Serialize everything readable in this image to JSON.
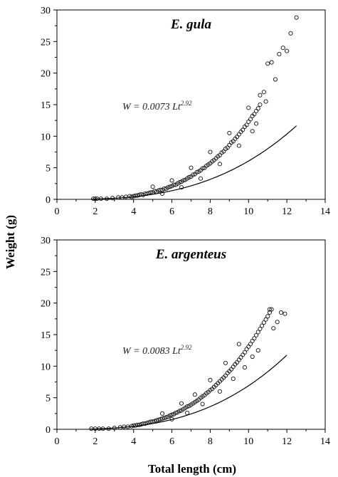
{
  "figure": {
    "ylabel": "Weight (g)",
    "xlabel": "Total length (cm)"
  },
  "chart_data": [
    {
      "type": "scatter",
      "title": "E. gula",
      "equation": {
        "prefix": "W = 0.0073 Lt",
        "exponent": "2.92"
      },
      "model": {
        "a": 0.0073,
        "b": 2.92,
        "x_from": 1.8,
        "x_to": 12.5
      },
      "xlim": [
        0,
        14
      ],
      "ylim": [
        0,
        30
      ],
      "xticks": [
        0,
        2,
        4,
        6,
        8,
        10,
        12,
        14
      ],
      "yticks": [
        0,
        5,
        10,
        15,
        20,
        25,
        30
      ],
      "points": [
        [
          1.9,
          0.1
        ],
        [
          2.0,
          0.1
        ],
        [
          2.1,
          0.1
        ],
        [
          2.3,
          0.1
        ],
        [
          2.6,
          0.1
        ],
        [
          2.9,
          0.2
        ],
        [
          3.2,
          0.3
        ],
        [
          3.4,
          0.3
        ],
        [
          3.6,
          0.4
        ],
        [
          3.8,
          0.5
        ],
        [
          3.9,
          0.4
        ],
        [
          4.0,
          0.5
        ],
        [
          4.1,
          0.6
        ],
        [
          4.2,
          0.6
        ],
        [
          4.3,
          0.7
        ],
        [
          4.4,
          0.8
        ],
        [
          4.5,
          0.7
        ],
        [
          4.6,
          0.9
        ],
        [
          4.7,
          0.9
        ],
        [
          4.8,
          1.0
        ],
        [
          4.9,
          1.1
        ],
        [
          5.0,
          1.1
        ],
        [
          5.1,
          1.3
        ],
        [
          5.2,
          1.2
        ],
        [
          5.3,
          1.4
        ],
        [
          5.4,
          1.5
        ],
        [
          5.5,
          1.5
        ],
        [
          5.6,
          1.7
        ],
        [
          5.7,
          1.7
        ],
        [
          5.8,
          1.9
        ],
        [
          5.9,
          2.0
        ],
        [
          6.0,
          2.1
        ],
        [
          6.1,
          2.3
        ],
        [
          6.2,
          2.3
        ],
        [
          6.3,
          2.5
        ],
        [
          6.4,
          2.7
        ],
        [
          6.5,
          2.8
        ],
        [
          6.6,
          3.0
        ],
        [
          6.7,
          3.1
        ],
        [
          6.8,
          3.3
        ],
        [
          6.9,
          3.5
        ],
        [
          7.0,
          3.6
        ],
        [
          7.1,
          3.9
        ],
        [
          7.2,
          4.0
        ],
        [
          7.3,
          4.3
        ],
        [
          7.4,
          4.4
        ],
        [
          7.5,
          4.6
        ],
        [
          7.6,
          4.9
        ],
        [
          7.7,
          5.0
        ],
        [
          7.8,
          5.3
        ],
        [
          7.9,
          5.5
        ],
        [
          8.0,
          5.7
        ],
        [
          8.1,
          6.0
        ],
        [
          8.2,
          6.2
        ],
        [
          8.3,
          6.5
        ],
        [
          8.4,
          6.8
        ],
        [
          8.5,
          7.0
        ],
        [
          8.6,
          7.4
        ],
        [
          8.7,
          7.6
        ],
        [
          8.8,
          8.0
        ],
        [
          8.9,
          8.2
        ],
        [
          9.0,
          8.6
        ],
        [
          9.1,
          9.0
        ],
        [
          9.2,
          9.2
        ],
        [
          9.3,
          9.6
        ],
        [
          9.4,
          9.9
        ],
        [
          9.5,
          10.3
        ],
        [
          9.6,
          10.7
        ],
        [
          9.7,
          11.0
        ],
        [
          9.8,
          11.5
        ],
        [
          9.9,
          11.8
        ],
        [
          10.0,
          12.3
        ],
        [
          10.1,
          12.7
        ],
        [
          10.2,
          13.2
        ],
        [
          10.3,
          13.5
        ],
        [
          10.4,
          14.0
        ],
        [
          10.5,
          14.4
        ],
        [
          10.6,
          15.0
        ],
        [
          5.0,
          2.0
        ],
        [
          5.5,
          0.9
        ],
        [
          6.0,
          3.0
        ],
        [
          6.5,
          1.9
        ],
        [
          7.0,
          5.0
        ],
        [
          7.5,
          3.3
        ],
        [
          8.0,
          7.5
        ],
        [
          8.5,
          5.6
        ],
        [
          9.0,
          10.5
        ],
        [
          9.5,
          8.5
        ],
        [
          10.0,
          14.5
        ],
        [
          10.2,
          10.8
        ],
        [
          10.4,
          12.0
        ],
        [
          10.6,
          16.5
        ],
        [
          10.8,
          17.0
        ],
        [
          10.9,
          15.5
        ],
        [
          11.0,
          21.5
        ],
        [
          11.2,
          21.7
        ],
        [
          11.4,
          19.0
        ],
        [
          11.6,
          23.0
        ],
        [
          11.8,
          24.0
        ],
        [
          12.0,
          23.5
        ],
        [
          12.2,
          26.3
        ],
        [
          12.5,
          28.8
        ]
      ]
    },
    {
      "type": "scatter",
      "title": "E. argenteus",
      "equation": {
        "prefix": "W = 0.0083 Lt",
        "exponent": "2.92"
      },
      "model": {
        "a": 0.0083,
        "b": 2.92,
        "x_from": 1.7,
        "x_to": 12.0
      },
      "xlim": [
        0,
        14
      ],
      "ylim": [
        0,
        30
      ],
      "xticks": [
        0,
        2,
        4,
        6,
        8,
        10,
        12,
        14
      ],
      "yticks": [
        0,
        5,
        10,
        15,
        20,
        25,
        30
      ],
      "points": [
        [
          1.8,
          0.1
        ],
        [
          2.0,
          0.1
        ],
        [
          2.2,
          0.1
        ],
        [
          2.4,
          0.1
        ],
        [
          2.7,
          0.1
        ],
        [
          3.0,
          0.2
        ],
        [
          3.3,
          0.3
        ],
        [
          3.5,
          0.4
        ],
        [
          3.7,
          0.4
        ],
        [
          3.9,
          0.5
        ],
        [
          4.0,
          0.6
        ],
        [
          4.1,
          0.6
        ],
        [
          4.2,
          0.7
        ],
        [
          4.3,
          0.7
        ],
        [
          4.4,
          0.8
        ],
        [
          4.5,
          0.9
        ],
        [
          4.6,
          0.9
        ],
        [
          4.7,
          1.0
        ],
        [
          4.8,
          1.1
        ],
        [
          4.9,
          1.2
        ],
        [
          5.0,
          1.2
        ],
        [
          5.1,
          1.3
        ],
        [
          5.2,
          1.4
        ],
        [
          5.3,
          1.5
        ],
        [
          5.4,
          1.6
        ],
        [
          5.5,
          1.7
        ],
        [
          5.6,
          1.8
        ],
        [
          5.7,
          1.9
        ],
        [
          5.8,
          2.0
        ],
        [
          5.9,
          2.2
        ],
        [
          6.0,
          2.3
        ],
        [
          6.1,
          2.4
        ],
        [
          6.2,
          2.6
        ],
        [
          6.3,
          2.7
        ],
        [
          6.4,
          2.9
        ],
        [
          6.5,
          3.0
        ],
        [
          6.6,
          3.2
        ],
        [
          6.7,
          3.4
        ],
        [
          6.8,
          3.6
        ],
        [
          6.9,
          3.7
        ],
        [
          7.0,
          3.9
        ],
        [
          7.1,
          4.1
        ],
        [
          7.2,
          4.3
        ],
        [
          7.3,
          4.5
        ],
        [
          7.4,
          4.7
        ],
        [
          7.5,
          5.0
        ],
        [
          7.6,
          5.2
        ],
        [
          7.7,
          5.4
        ],
        [
          7.8,
          5.7
        ],
        [
          7.9,
          5.9
        ],
        [
          8.0,
          6.2
        ],
        [
          8.1,
          6.4
        ],
        [
          8.2,
          6.7
        ],
        [
          8.3,
          7.0
        ],
        [
          8.4,
          7.3
        ],
        [
          8.5,
          7.6
        ],
        [
          8.6,
          7.9
        ],
        [
          8.7,
          8.2
        ],
        [
          8.8,
          8.5
        ],
        [
          8.9,
          8.9
        ],
        [
          9.0,
          9.2
        ],
        [
          9.1,
          9.5
        ],
        [
          9.2,
          9.9
        ],
        [
          9.3,
          10.3
        ],
        [
          9.4,
          10.6
        ],
        [
          9.5,
          11.0
        ],
        [
          9.6,
          11.4
        ],
        [
          9.7,
          11.8
        ],
        [
          9.8,
          12.2
        ],
        [
          9.9,
          12.7
        ],
        [
          10.0,
          13.1
        ],
        [
          10.1,
          13.5
        ],
        [
          10.2,
          14.0
        ],
        [
          10.3,
          14.4
        ],
        [
          10.4,
          14.9
        ],
        [
          10.5,
          15.4
        ],
        [
          10.6,
          15.9
        ],
        [
          10.7,
          16.4
        ],
        [
          10.8,
          16.9
        ],
        [
          10.9,
          17.4
        ],
        [
          11.0,
          17.9
        ],
        [
          11.1,
          18.5
        ],
        [
          11.2,
          19.0
        ],
        [
          11.3,
          16.0
        ],
        [
          11.5,
          17.0
        ],
        [
          11.7,
          18.5
        ],
        [
          11.9,
          18.3
        ],
        [
          11.1,
          19.0
        ],
        [
          10.5,
          12.5
        ],
        [
          10.2,
          11.5
        ],
        [
          9.8,
          9.8
        ],
        [
          9.5,
          13.5
        ],
        [
          9.2,
          8.0
        ],
        [
          8.8,
          10.5
        ],
        [
          8.5,
          6.0
        ],
        [
          8.0,
          7.8
        ],
        [
          7.6,
          4.0
        ],
        [
          7.2,
          5.5
        ],
        [
          6.8,
          2.6
        ],
        [
          6.5,
          4.1
        ],
        [
          6.0,
          1.6
        ],
        [
          5.5,
          2.5
        ]
      ]
    }
  ]
}
